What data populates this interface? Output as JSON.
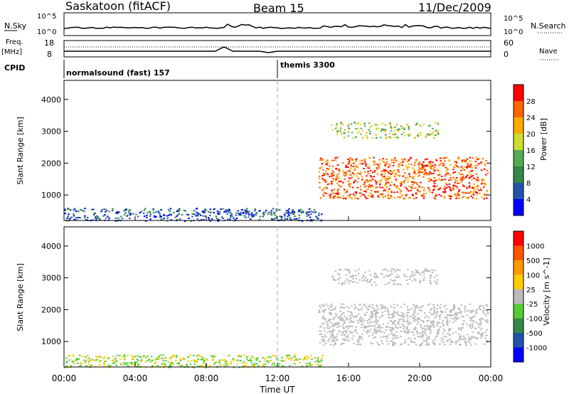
{
  "header": {
    "station": "Saskatoon (fitACF)",
    "beam": "Beam 15",
    "date": "11/Dec/2009"
  },
  "strip_labels": {
    "nsky": "N.Sky",
    "nsearch": "N.Search",
    "freq_top": "Freq.",
    "freq_unit": "[MHz]",
    "nave": "Nave",
    "cpid": "CPID",
    "nsky_ticks": [
      "10^5",
      "10^0"
    ],
    "nsearch_ticks": [
      "10^5",
      "10^0"
    ],
    "freq_ticks": [
      "18",
      "8"
    ],
    "nave_ticks": [
      "60",
      "0"
    ]
  },
  "cpid": {
    "segments": [
      {
        "label": "normalsound (fast) 157",
        "start_hour": 0
      },
      {
        "label": "themis 3300",
        "start_hour": 12
      }
    ]
  },
  "colors": {
    "power_scale": [
      "#0000ff",
      "#2255aa",
      "#33884a",
      "#55aa55",
      "#ccdd33",
      "#ffaa00",
      "#ff6600",
      "#ff0000"
    ],
    "velocity_scale": [
      "#0000ff",
      "#2255aa",
      "#33884a",
      "#55cc33",
      "#bbbbbb",
      "#ffcc00",
      "#ff9900",
      "#ff5500",
      "#ff0000"
    ],
    "ground_scatter": "#bbbbbb"
  },
  "chart_data": [
    {
      "type": "heatmap",
      "name": "power",
      "ylabel": "Slant Range [km]",
      "yticks": [
        "1000",
        "2000",
        "3000",
        "4000"
      ],
      "ylim": [
        200,
        4600
      ],
      "xlim": [
        0,
        24
      ],
      "colorbar": {
        "label": "Power [dB]",
        "ticks": [
          "4",
          "8",
          "12",
          "16",
          "20",
          "24",
          "28"
        ],
        "range": [
          0,
          32
        ]
      },
      "regions": [
        {
          "hours": [
            0,
            14.5
          ],
          "range_km": [
            200,
            600
          ],
          "power_db": 6
        },
        {
          "hours": [
            14.3,
            23.8
          ],
          "range_km": [
            900,
            2200
          ],
          "power_db": 26
        },
        {
          "hours": [
            15,
            21
          ],
          "range_km": [
            2800,
            3300
          ],
          "power_db": 16
        }
      ]
    },
    {
      "type": "heatmap",
      "name": "velocity",
      "ylabel": "Slant Range [km]",
      "yticks": [
        "1000",
        "2000",
        "3000",
        "4000"
      ],
      "ylim": [
        200,
        4600
      ],
      "xlim": [
        0,
        24
      ],
      "colorbar": {
        "label": "Velocity [m s^-1]",
        "ticks": [
          "1000",
          "500",
          "100",
          "25",
          "-25",
          "-100",
          "-500",
          "-1000"
        ]
      },
      "regions": [
        {
          "hours": [
            0,
            14.5
          ],
          "range_km": [
            200,
            600
          ],
          "velocity_ms": 50
        },
        {
          "hours": [
            14.3,
            23.8
          ],
          "range_km": [
            900,
            2200
          ],
          "velocity_ms": 0
        },
        {
          "hours": [
            15,
            21
          ],
          "range_km": [
            2800,
            3300
          ],
          "velocity_ms": 0
        }
      ]
    }
  ],
  "x_axis": {
    "label": "Time UT",
    "ticks": [
      "00:00",
      "04:00",
      "08:00",
      "12:00",
      "16:00",
      "20:00",
      "00:00"
    ]
  }
}
